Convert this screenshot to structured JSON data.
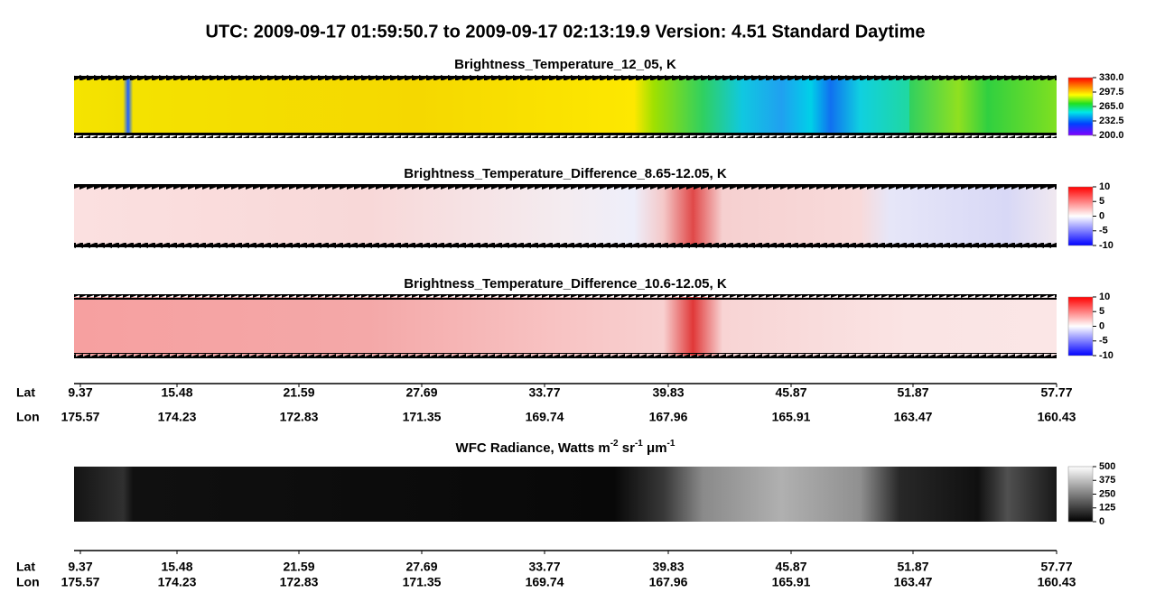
{
  "title": "UTC:  2009-09-17   01:59:50.7  to  2009-09-17   02:13:19.9    Version: 4.51  Standard Daytime",
  "chart_data": [
    {
      "type": "heatmap",
      "title": "Brightness_Temperature_12_05, K",
      "colorbar": {
        "lim": [
          200,
          330
        ],
        "ticks": [
          {
            "value": 330,
            "label": "330.0"
          },
          297.5,
          {
            "value": 265,
            "label": "265.0"
          },
          232.5,
          {
            "value": 200,
            "label": "200.0"
          }
        ]
      }
    },
    {
      "type": "heatmap",
      "title": "Brightness_Temperature_Difference_8.65-12.05, K",
      "colorbar": {
        "lim": [
          -10,
          10
        ],
        "ticks": [
          10,
          5,
          0,
          -5,
          -10
        ]
      }
    },
    {
      "type": "heatmap",
      "title": "Brightness_Temperature_Difference_10.6-12.05, K",
      "colorbar": {
        "lim": [
          -10,
          10
        ],
        "ticks": [
          10,
          5,
          0,
          -5,
          -10
        ]
      }
    },
    {
      "type": "heatmap",
      "title_parts": [
        "WFC Radiance, Watts m",
        "-2",
        " sr",
        "-1",
        " μm",
        "-1"
      ],
      "colorbar": {
        "lim": [
          0,
          500
        ],
        "ticks": [
          500,
          375,
          250,
          125,
          0
        ]
      }
    }
  ],
  "geo_axis": {
    "lat_label": "Lat",
    "lon_label": "Lon",
    "lat": [
      9.37,
      15.48,
      21.59,
      27.69,
      33.77,
      39.83,
      45.87,
      51.87,
      57.77
    ],
    "lon": [
      175.57,
      174.23,
      172.83,
      171.35,
      169.74,
      167.96,
      165.91,
      163.47,
      160.43
    ]
  }
}
